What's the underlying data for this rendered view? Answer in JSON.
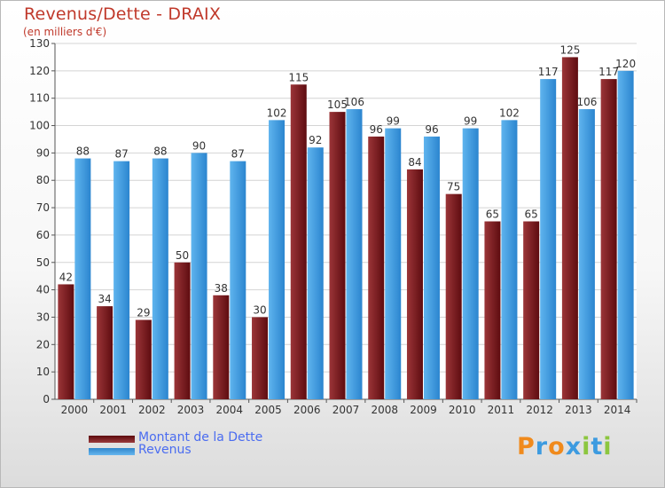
{
  "header": {
    "title": "Revenus/Dette - DRAIX",
    "subtitle": "(en milliers d'€)"
  },
  "chart_data": {
    "type": "bar",
    "categories": [
      "2000",
      "2001",
      "2002",
      "2003",
      "2004",
      "2005",
      "2006",
      "2007",
      "2008",
      "2009",
      "2010",
      "2011",
      "2012",
      "2013",
      "2014"
    ],
    "series": [
      {
        "name": "Montant de la Dette",
        "color": "#7a1f22",
        "values": [
          42,
          34,
          29,
          50,
          38,
          30,
          115,
          105,
          96,
          84,
          75,
          65,
          65,
          125,
          117
        ]
      },
      {
        "name": "Revenus",
        "color": "#3d9be0",
        "values": [
          88,
          87,
          88,
          90,
          87,
          102,
          92,
          106,
          99,
          96,
          99,
          102,
          117,
          106,
          120
        ]
      }
    ],
    "ylim": [
      0,
      130
    ],
    "yticks": [
      0,
      10,
      20,
      30,
      40,
      50,
      60,
      70,
      80,
      90,
      100,
      110,
      120,
      130
    ],
    "grid": true,
    "legend": "bottom-left",
    "data_labels": true
  },
  "logo": {
    "text": "Proxiti",
    "letters": [
      {
        "ch": "P",
        "color": "#f08a1c"
      },
      {
        "ch": "r",
        "color": "#3d9be0"
      },
      {
        "ch": "o",
        "color": "#f08a1c"
      },
      {
        "ch": "x",
        "color": "#3d9be0"
      },
      {
        "ch": "i",
        "color": "#8cc63f"
      },
      {
        "ch": "t",
        "color": "#3d9be0"
      },
      {
        "ch": "i",
        "color": "#8cc63f"
      }
    ]
  }
}
